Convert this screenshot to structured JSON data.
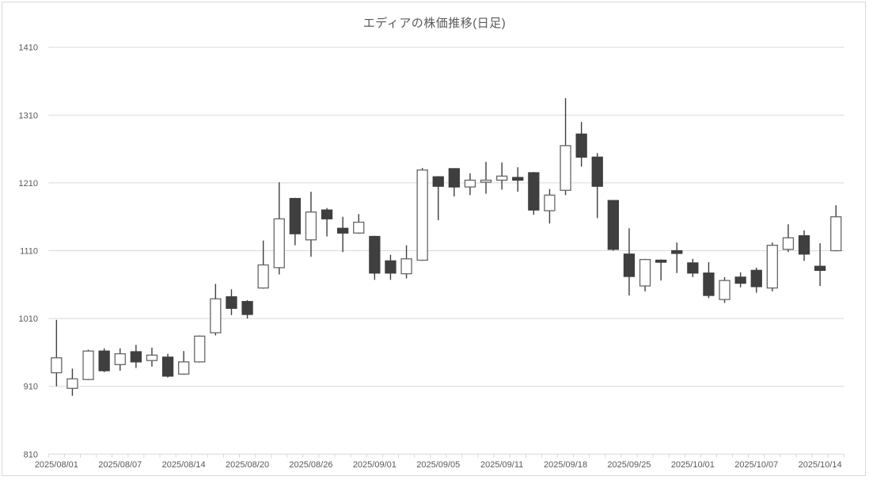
{
  "title": "エディアの株価推移(日足)",
  "colors": {
    "background": "#ffffff",
    "grid_line": "#d9d9d9",
    "chart_border": "#d9d9d9",
    "tick_mark": "#d9d9d9",
    "axis_label": "#595959",
    "title": "#595959",
    "bullish_fill": "#ffffff",
    "bullish_border": "#666666",
    "bearish_fill": "#3f3f3f",
    "bearish_border": "#3f3f3f",
    "wick": "#3f3f3f"
  },
  "chart_data": {
    "type": "candlestick",
    "title": "エディアの株価推移(日足)",
    "xlabel": "",
    "ylabel": "",
    "ylim": [
      810,
      1410
    ],
    "y_ticks": [
      810,
      910,
      1010,
      1110,
      1210,
      1310,
      1410
    ],
    "grid": "horizontal",
    "legend": "none",
    "x_tick_labels": [
      "2025/08/01",
      "2025/08/07",
      "2025/08/14",
      "2025/08/20",
      "2025/08/26",
      "2025/09/01",
      "2025/09/05",
      "2025/09/11",
      "2025/09/18",
      "2025/09/25",
      "2025/10/01",
      "2025/10/07",
      "2025/10/14"
    ],
    "x_tick_label_indices": [
      0,
      4,
      8,
      12,
      16,
      20,
      24,
      28,
      32,
      36,
      40,
      44,
      48
    ],
    "candles": [
      {
        "date": "2025/08/01",
        "open": 930,
        "high": 1008,
        "low": 910,
        "close": 952
      },
      {
        "date": "2025/08/04",
        "open": 907,
        "high": 936,
        "low": 896,
        "close": 921
      },
      {
        "date": "2025/08/05",
        "open": 920,
        "high": 964,
        "low": 919,
        "close": 962
      },
      {
        "date": "2025/08/06",
        "open": 962,
        "high": 966,
        "low": 931,
        "close": 933
      },
      {
        "date": "2025/08/07",
        "open": 942,
        "high": 966,
        "low": 933,
        "close": 958
      },
      {
        "date": "2025/08/08",
        "open": 961,
        "high": 971,
        "low": 937,
        "close": 946
      },
      {
        "date": "2025/08/12",
        "open": 948,
        "high": 967,
        "low": 939,
        "close": 956
      },
      {
        "date": "2025/08/13",
        "open": 953,
        "high": 958,
        "low": 923,
        "close": 925
      },
      {
        "date": "2025/08/14",
        "open": 928,
        "high": 962,
        "low": 927,
        "close": 946
      },
      {
        "date": "2025/08/15",
        "open": 946,
        "high": 985,
        "low": 945,
        "close": 984
      },
      {
        "date": "2025/08/18",
        "open": 989,
        "high": 1061,
        "low": 985,
        "close": 1039
      },
      {
        "date": "2025/08/19",
        "open": 1042,
        "high": 1053,
        "low": 1015,
        "close": 1025
      },
      {
        "date": "2025/08/20",
        "open": 1035,
        "high": 1037,
        "low": 1010,
        "close": 1016
      },
      {
        "date": "2025/08/21",
        "open": 1055,
        "high": 1125,
        "low": 1054,
        "close": 1089
      },
      {
        "date": "2025/08/22",
        "open": 1085,
        "high": 1211,
        "low": 1075,
        "close": 1157
      },
      {
        "date": "2025/08/25",
        "open": 1187,
        "high": 1188,
        "low": 1118,
        "close": 1135
      },
      {
        "date": "2025/08/26",
        "open": 1126,
        "high": 1197,
        "low": 1101,
        "close": 1167
      },
      {
        "date": "2025/08/27",
        "open": 1170,
        "high": 1173,
        "low": 1131,
        "close": 1157
      },
      {
        "date": "2025/08/28",
        "open": 1143,
        "high": 1160,
        "low": 1108,
        "close": 1136
      },
      {
        "date": "2025/08/29",
        "open": 1136,
        "high": 1164,
        "low": 1135,
        "close": 1152
      },
      {
        "date": "2025/09/01",
        "open": 1131,
        "high": 1132,
        "low": 1067,
        "close": 1077
      },
      {
        "date": "2025/09/02",
        "open": 1095,
        "high": 1104,
        "low": 1067,
        "close": 1077
      },
      {
        "date": "2025/09/03",
        "open": 1076,
        "high": 1118,
        "low": 1069,
        "close": 1098
      },
      {
        "date": "2025/09/04",
        "open": 1096,
        "high": 1232,
        "low": 1095,
        "close": 1229
      },
      {
        "date": "2025/09/05",
        "open": 1219,
        "high": 1220,
        "low": 1155,
        "close": 1205
      },
      {
        "date": "2025/09/08",
        "open": 1231,
        "high": 1231,
        "low": 1190,
        "close": 1204
      },
      {
        "date": "2025/09/09",
        "open": 1204,
        "high": 1224,
        "low": 1192,
        "close": 1214
      },
      {
        "date": "2025/09/10",
        "open": 1211,
        "high": 1241,
        "low": 1194,
        "close": 1214
      },
      {
        "date": "2025/09/11",
        "open": 1214,
        "high": 1240,
        "low": 1200,
        "close": 1220
      },
      {
        "date": "2025/09/12",
        "open": 1218,
        "high": 1233,
        "low": 1197,
        "close": 1214
      },
      {
        "date": "2025/09/16",
        "open": 1225,
        "high": 1226,
        "low": 1163,
        "close": 1170
      },
      {
        "date": "2025/09/17",
        "open": 1169,
        "high": 1201,
        "low": 1150,
        "close": 1192
      },
      {
        "date": "2025/09/18",
        "open": 1199,
        "high": 1335,
        "low": 1192,
        "close": 1265
      },
      {
        "date": "2025/09/19",
        "open": 1282,
        "high": 1300,
        "low": 1234,
        "close": 1248
      },
      {
        "date": "2025/09/22",
        "open": 1248,
        "high": 1254,
        "low": 1158,
        "close": 1205
      },
      {
        "date": "2025/09/24",
        "open": 1184,
        "high": 1184,
        "low": 1110,
        "close": 1112
      },
      {
        "date": "2025/09/25",
        "open": 1105,
        "high": 1143,
        "low": 1044,
        "close": 1072
      },
      {
        "date": "2025/09/26",
        "open": 1058,
        "high": 1098,
        "low": 1050,
        "close": 1097
      },
      {
        "date": "2025/09/29",
        "open": 1096,
        "high": 1097,
        "low": 1066,
        "close": 1093
      },
      {
        "date": "2025/09/30",
        "open": 1110,
        "high": 1122,
        "low": 1077,
        "close": 1106
      },
      {
        "date": "2025/10/01",
        "open": 1092,
        "high": 1098,
        "low": 1071,
        "close": 1077
      },
      {
        "date": "2025/10/02",
        "open": 1077,
        "high": 1093,
        "low": 1040,
        "close": 1044
      },
      {
        "date": "2025/10/03",
        "open": 1038,
        "high": 1071,
        "low": 1033,
        "close": 1066
      },
      {
        "date": "2025/10/06",
        "open": 1071,
        "high": 1078,
        "low": 1056,
        "close": 1062
      },
      {
        "date": "2025/10/07",
        "open": 1081,
        "high": 1085,
        "low": 1048,
        "close": 1057
      },
      {
        "date": "2025/10/08",
        "open": 1055,
        "high": 1122,
        "low": 1050,
        "close": 1118
      },
      {
        "date": "2025/10/09",
        "open": 1112,
        "high": 1149,
        "low": 1108,
        "close": 1129
      },
      {
        "date": "2025/10/10",
        "open": 1132,
        "high": 1140,
        "low": 1095,
        "close": 1105
      },
      {
        "date": "2025/10/14",
        "open": 1087,
        "high": 1121,
        "low": 1058,
        "close": 1081
      },
      {
        "date": "2025/10/15",
        "open": 1110,
        "high": 1177,
        "low": 1109,
        "close": 1160
      }
    ]
  }
}
